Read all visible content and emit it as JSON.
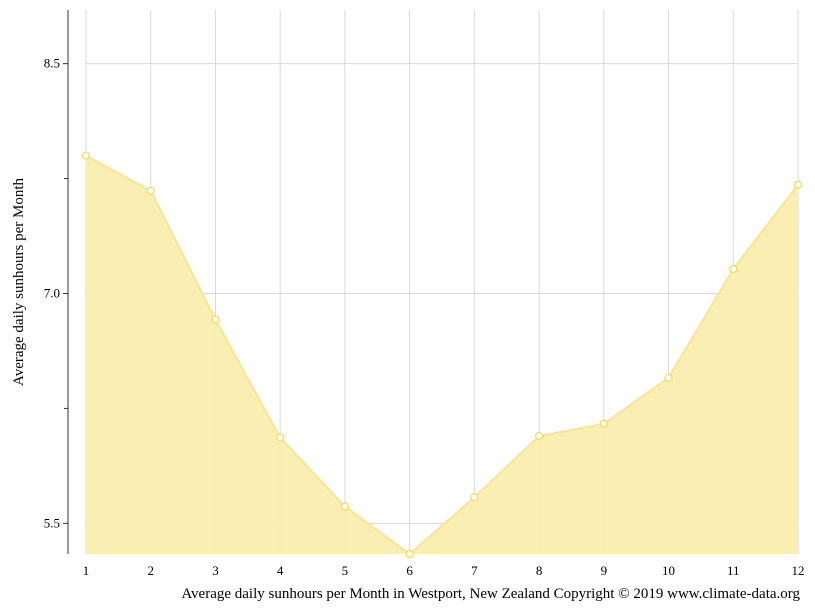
{
  "chart_data": {
    "type": "area",
    "title": "",
    "xlabel": "Average daily sunhours per Month in Westport, New Zealand Copyright © 2019 www.climate-data.org",
    "ylabel": "Average daily sunhours per Month",
    "x": [
      1,
      2,
      3,
      4,
      5,
      6,
      7,
      8,
      9,
      10,
      11,
      12
    ],
    "x_tick_labels": [
      "1",
      "2",
      "3",
      "4",
      "5",
      "6",
      "7",
      "8",
      "9",
      "10",
      "11",
      "12"
    ],
    "series": [
      {
        "values": [
          7.9,
          7.67,
          6.83,
          6.06,
          5.61,
          5.3,
          5.67,
          6.07,
          6.15,
          6.45,
          7.16,
          7.71
        ]
      }
    ],
    "ylim": [
      5.3,
      8.85
    ],
    "y_ticks": [
      5.5,
      7.0,
      8.5
    ],
    "y_tick_labels": [
      "5.5",
      "7.0",
      "8.5"
    ],
    "y_minor_ticks": [
      6.25,
      7.75
    ],
    "grid": true,
    "legend": "none",
    "colors": {
      "area_fill": "#f9eeaf",
      "line": "#f9e68e",
      "marker_stroke": "#f5d94e",
      "marker_fill": "#ffffff",
      "grid": "#d9d9d9",
      "axis": "#333333"
    }
  }
}
